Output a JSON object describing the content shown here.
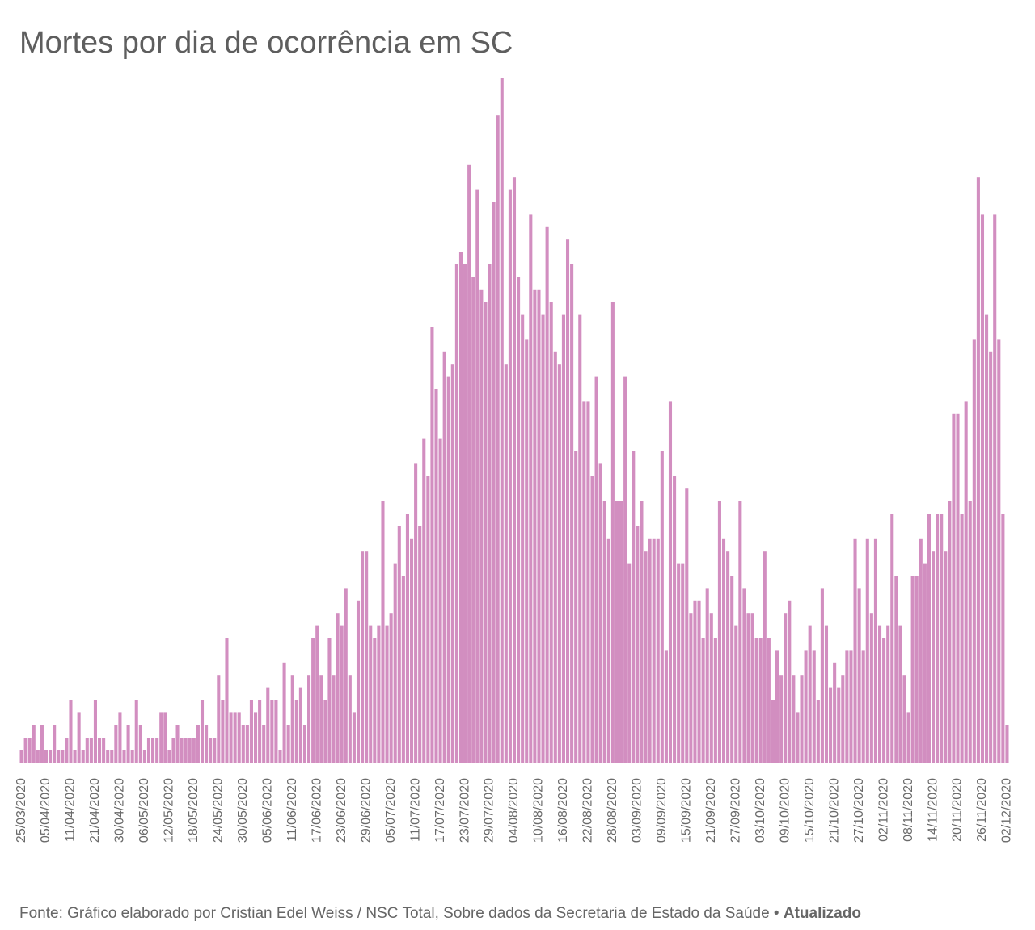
{
  "chart_data": {
    "type": "bar",
    "title": "Mortes por dia de ocorrência em SC",
    "source": "Fonte: Gráfico elaborado por Cristian Edel Weiss / NSC Total, Sobre dados da Secretaria de Estado da Saúde •",
    "updated": "Atualizado",
    "color": "#d28ec0",
    "ylim": [
      0,
      55
    ],
    "categories": [
      "25/03/2020",
      null,
      null,
      null,
      null,
      null,
      "05/04/2020",
      null,
      null,
      null,
      null,
      null,
      "11/04/2020",
      null,
      null,
      null,
      null,
      null,
      "21/04/2020",
      null,
      null,
      null,
      null,
      null,
      "30/04/2020",
      null,
      null,
      null,
      null,
      null,
      "06/05/2020",
      null,
      null,
      null,
      null,
      null,
      "12/05/2020",
      null,
      null,
      null,
      null,
      null,
      "18/05/2020",
      null,
      null,
      null,
      null,
      null,
      "24/05/2020",
      null,
      null,
      null,
      null,
      null,
      "30/05/2020",
      null,
      null,
      null,
      null,
      null,
      "05/06/2020",
      null,
      null,
      null,
      null,
      null,
      "11/06/2020",
      null,
      null,
      null,
      null,
      null,
      "17/06/2020",
      null,
      null,
      null,
      null,
      null,
      "23/06/2020",
      null,
      null,
      null,
      null,
      null,
      "29/06/2020",
      null,
      null,
      null,
      null,
      null,
      "05/07/2020",
      null,
      null,
      null,
      null,
      null,
      "11/07/2020",
      null,
      null,
      null,
      null,
      null,
      "17/07/2020",
      null,
      null,
      null,
      null,
      null,
      "23/07/2020",
      null,
      null,
      null,
      null,
      null,
      "29/07/2020",
      null,
      null,
      null,
      null,
      null,
      "04/08/2020",
      null,
      null,
      null,
      null,
      null,
      "10/08/2020",
      null,
      null,
      null,
      null,
      null,
      "16/08/2020",
      null,
      null,
      null,
      null,
      null,
      "22/08/2020",
      null,
      null,
      null,
      null,
      null,
      "28/08/2020",
      null,
      null,
      null,
      null,
      null,
      "03/09/2020",
      null,
      null,
      null,
      null,
      null,
      "09/09/2020",
      null,
      null,
      null,
      null,
      null,
      "15/09/2020",
      null,
      null,
      null,
      null,
      null,
      "21/09/2020",
      null,
      null,
      null,
      null,
      null,
      "27/09/2020",
      null,
      null,
      null,
      null,
      null,
      "03/10/2020",
      null,
      null,
      null,
      null,
      null,
      "09/10/2020",
      null,
      null,
      null,
      null,
      null,
      "15/10/2020",
      null,
      null,
      null,
      null,
      null,
      "21/10/2020",
      null,
      null,
      null,
      null,
      null,
      "27/10/2020",
      null,
      null,
      null,
      null,
      null,
      "02/11/2020",
      null,
      null,
      null,
      null,
      null,
      "08/11/2020",
      null,
      null,
      null,
      null,
      null,
      "14/11/2020",
      null,
      null,
      null,
      null,
      null,
      "20/11/2020",
      null,
      null,
      null,
      null,
      null,
      "26/11/2020",
      null,
      null,
      null,
      null,
      null,
      "02/12/2020"
    ],
    "values": [
      1,
      2,
      2,
      3,
      1,
      3,
      1,
      1,
      3,
      1,
      1,
      2,
      5,
      1,
      4,
      1,
      2,
      2,
      5,
      2,
      2,
      1,
      1,
      3,
      4,
      1,
      3,
      1,
      5,
      3,
      1,
      2,
      2,
      2,
      4,
      4,
      1,
      2,
      3,
      2,
      2,
      2,
      2,
      3,
      5,
      3,
      2,
      2,
      7,
      5,
      10,
      4,
      4,
      4,
      3,
      3,
      5,
      4,
      5,
      3,
      6,
      5,
      5,
      1,
      8,
      3,
      7,
      5,
      6,
      3,
      7,
      10,
      11,
      7,
      5,
      10,
      7,
      12,
      11,
      14,
      7,
      4,
      13,
      17,
      17,
      11,
      10,
      11,
      21,
      11,
      12,
      16,
      19,
      15,
      20,
      18,
      24,
      19,
      26,
      23,
      35,
      30,
      26,
      33,
      31,
      32,
      40,
      41,
      40,
      48,
      39,
      46,
      38,
      37,
      40,
      45,
      52,
      55,
      32,
      46,
      47,
      39,
      36,
      34,
      44,
      38,
      38,
      36,
      43,
      37,
      33,
      32,
      36,
      42,
      40,
      25,
      36,
      29,
      29,
      23,
      31,
      24,
      21,
      18,
      37,
      21,
      21,
      31,
      16,
      25,
      19,
      21,
      17,
      18,
      18,
      18,
      25,
      9,
      29,
      23,
      16,
      16,
      22,
      12,
      13,
      13,
      10,
      14,
      12,
      10,
      21,
      18,
      17,
      15,
      11,
      21,
      14,
      12,
      12,
      10,
      10,
      17,
      10,
      5,
      9,
      7,
      12,
      13,
      7,
      4,
      7,
      9,
      11,
      9,
      5,
      14,
      11,
      6,
      8,
      6,
      7,
      9,
      9,
      18,
      14,
      9,
      18,
      12,
      18,
      11,
      10,
      11,
      20,
      15,
      11,
      7,
      4,
      15,
      15,
      18,
      16,
      20,
      17,
      20,
      20,
      17,
      21,
      28,
      28,
      20,
      29,
      21,
      34,
      47,
      44,
      36,
      33,
      44,
      34,
      20,
      3
    ]
  }
}
